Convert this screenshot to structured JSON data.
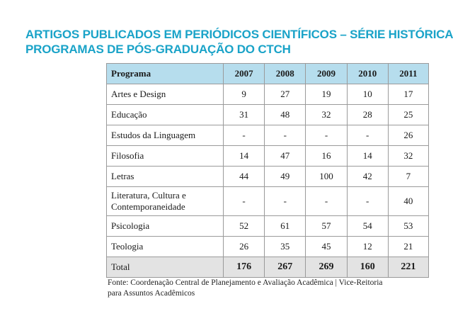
{
  "title": {
    "line1": "ARTIGOS PUBLICADOS EM PERIÓDICOS CIENTÍFICOS – SÉRIE HISTÓRICA",
    "line2": "PROGRAMAS DE PÓS-GRADUAÇÃO DO CTCH"
  },
  "table": {
    "header": {
      "program": "Programa",
      "years": [
        "2007",
        "2008",
        "2009",
        "2010",
        "2011"
      ]
    },
    "rows": [
      {
        "program": "Artes e Design",
        "values": [
          "9",
          "27",
          "19",
          "10",
          "17"
        ]
      },
      {
        "program": "Educação",
        "values": [
          "31",
          "48",
          "32",
          "28",
          "25"
        ]
      },
      {
        "program": "Estudos da Linguagem",
        "values": [
          "-",
          "-",
          "-",
          "-",
          "26"
        ]
      },
      {
        "program": "Filosofia",
        "values": [
          "14",
          "47",
          "16",
          "14",
          "32"
        ]
      },
      {
        "program": "Letras",
        "values": [
          "44",
          "49",
          "100",
          "42",
          "7"
        ]
      },
      {
        "program_line1": "Literatura, Cultura e",
        "program_line2": "Contemporaneidade",
        "values": [
          "-",
          "-",
          "-",
          "-",
          "40"
        ]
      },
      {
        "program": "Psicologia",
        "values": [
          "52",
          "61",
          "57",
          "54",
          "53"
        ]
      },
      {
        "program": "Teologia",
        "values": [
          "26",
          "35",
          "45",
          "12",
          "21"
        ]
      }
    ],
    "total": {
      "label": "Total",
      "values": [
        "176",
        "267",
        "269",
        "160",
        "221"
      ]
    }
  },
  "source": {
    "line1": "Fonte:  Coordenação Central de Planejamento e Avaliação Acadêmica | Vice-Reitoria",
    "line2": "para Assuntos Acadêmicos"
  }
}
